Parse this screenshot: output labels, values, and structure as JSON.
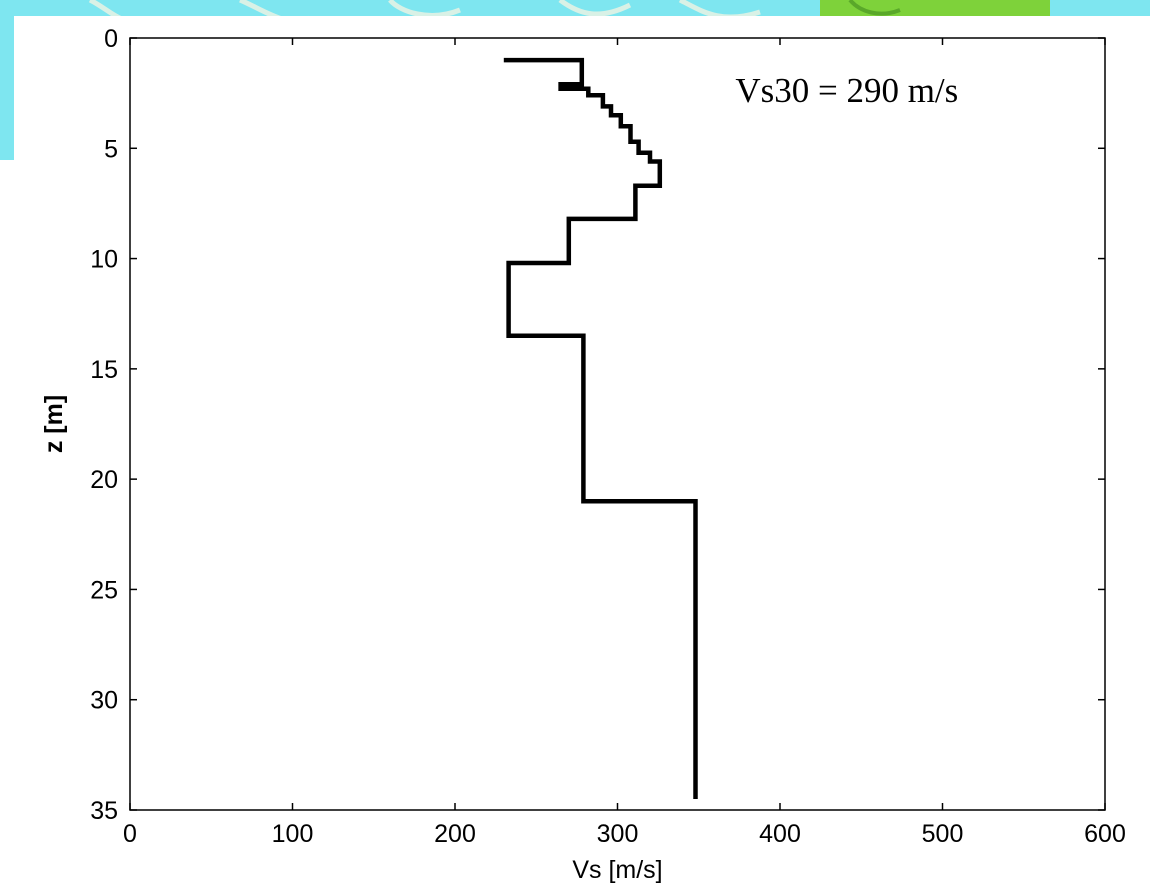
{
  "colors": {
    "backdrop_water": "#7ee6f0",
    "backdrop_water_light": "#b9f3f7",
    "backdrop_vein": "#d9f1e6",
    "backdrop_land": "#7ed23a",
    "backdrop_land_dark": "#5aa82a",
    "axes": "#000000",
    "line": "#000000",
    "figure_background": "#ffffff"
  },
  "chart_data": {
    "type": "line",
    "title": "",
    "xlabel": "Vs [m/s]",
    "ylabel": "z [m]",
    "xlim": [
      0,
      600
    ],
    "ylim": [
      0,
      35
    ],
    "y_reversed": true,
    "grid": false,
    "xticks": [
      0,
      100,
      200,
      300,
      400,
      500,
      600
    ],
    "yticks": [
      0,
      5,
      10,
      15,
      20,
      25,
      30,
      35
    ],
    "annotation": "Vs30 = 290 m/s",
    "series": [
      {
        "step_profile": true,
        "x": [
          230,
          278,
          278,
          265,
          265,
          282,
          282,
          291,
          291,
          296,
          296,
          302,
          302,
          308,
          308,
          313,
          313,
          320,
          320,
          326,
          326,
          311,
          311,
          270,
          270,
          233,
          233,
          279,
          279,
          348,
          348
        ],
        "y": [
          1.0,
          1.0,
          2.1,
          2.1,
          2.3,
          2.3,
          2.6,
          2.6,
          3.1,
          3.1,
          3.5,
          3.5,
          4.0,
          4.0,
          4.7,
          4.7,
          5.2,
          5.2,
          5.6,
          5.6,
          6.7,
          6.7,
          8.2,
          8.2,
          10.2,
          10.2,
          13.5,
          13.5,
          21.0,
          21.0,
          34.5
        ]
      }
    ]
  }
}
